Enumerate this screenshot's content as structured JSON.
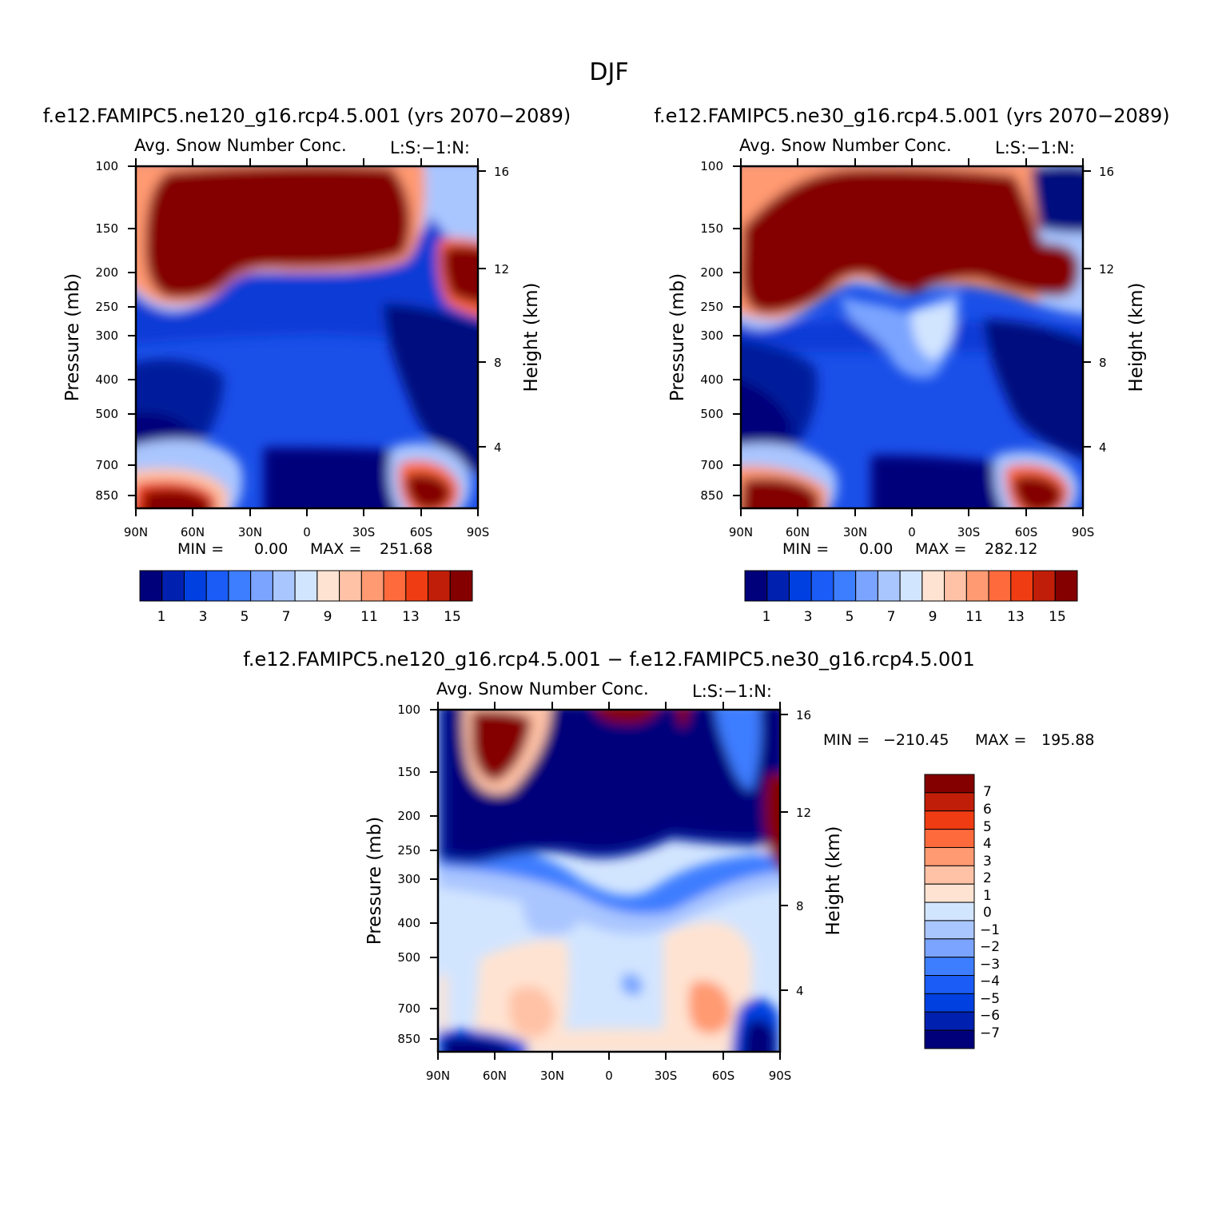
{
  "figure": {
    "title": "DJF"
  },
  "colors": {
    "abs_scale": [
      "#00007a",
      "#0020b0",
      "#0040e0",
      "#1a5cf5",
      "#3d7dff",
      "#7aa4ff",
      "#aac6ff",
      "#d2e5ff",
      "#ffe3d2",
      "#ffc2a6",
      "#ff9a72",
      "#ff6a3d",
      "#f03c12",
      "#c01e08",
      "#840000"
    ],
    "diff_scale": [
      "#00007a",
      "#0020b0",
      "#0040e0",
      "#1a5cf5",
      "#3d7dff",
      "#7aa4ff",
      "#aac6ff",
      "#d2e5ff",
      "#ffe3d2",
      "#ffc2a6",
      "#ff9a72",
      "#ff6a3d",
      "#f03c12",
      "#c01e08",
      "#840000"
    ]
  },
  "chart_data": [
    {
      "type": "heatmap",
      "title": "f.e12.FAMIPC5.ne120_g16.rcp4.5.001 (yrs 2070−2089)",
      "variable": "Avg. Snow Number Conc.",
      "annotation": "L:S:−1:N:",
      "ylabel": "Pressure (mb)",
      "ylabel_right": "Height (km)",
      "yscale": "log",
      "ylim": [
        850,
        100
      ],
      "x_ticks": [
        "90N",
        "60N",
        "30N",
        "0",
        "30S",
        "60S",
        "90S"
      ],
      "y_ticks": [
        "100",
        "150",
        "200",
        "250",
        "300",
        "400",
        "500",
        "700",
        "850"
      ],
      "y2_ticks": [
        "16",
        "12",
        "8",
        "4"
      ],
      "min_label": "MIN =",
      "min_value": "0.00",
      "max_label": "MAX =",
      "max_value": "251.68",
      "colorbar_labels": [
        "1",
        "3",
        "5",
        "7",
        "9",
        "11",
        "13",
        "15"
      ]
    },
    {
      "type": "heatmap",
      "title": "f.e12.FAMIPC5.ne30_g16.rcp4.5.001 (yrs 2070−2089)",
      "variable": "Avg. Snow Number Conc.",
      "annotation": "L:S:−1:N:",
      "ylabel": "Pressure (mb)",
      "ylabel_right": "Height (km)",
      "yscale": "log",
      "ylim": [
        850,
        100
      ],
      "x_ticks": [
        "90N",
        "60N",
        "30N",
        "0",
        "30S",
        "60S",
        "90S"
      ],
      "y_ticks": [
        "100",
        "150",
        "200",
        "250",
        "300",
        "400",
        "500",
        "700",
        "850"
      ],
      "y2_ticks": [
        "16",
        "12",
        "8",
        "4"
      ],
      "min_label": "MIN =",
      "min_value": "0.00",
      "max_label": "MAX =",
      "max_value": "282.12",
      "colorbar_labels": [
        "1",
        "3",
        "5",
        "7",
        "9",
        "11",
        "13",
        "15"
      ]
    },
    {
      "type": "heatmap",
      "title": "f.e12.FAMIPC5.ne120_g16.rcp4.5.001 − f.e12.FAMIPC5.ne30_g16.rcp4.5.001",
      "variable": "Avg. Snow Number Conc.",
      "annotation": "L:S:−1:N:",
      "ylabel": "Pressure (mb)",
      "ylabel_right": "Height (km)",
      "yscale": "log",
      "ylim": [
        850,
        100
      ],
      "x_ticks": [
        "90N",
        "60N",
        "30N",
        "0",
        "30S",
        "60S",
        "90S"
      ],
      "y_ticks": [
        "100",
        "150",
        "200",
        "250",
        "300",
        "400",
        "500",
        "700",
        "850"
      ],
      "y2_ticks": [
        "16",
        "12",
        "8",
        "4"
      ],
      "min_label": "MIN =",
      "min_value": "−210.45",
      "max_label": "MAX =",
      "max_value": "195.88",
      "colorbar_labels": [
        "7",
        "6",
        "5",
        "4",
        "3",
        "2",
        "1",
        "0",
        "−1",
        "−2",
        "−3",
        "−4",
        "−5",
        "−6",
        "−7"
      ]
    }
  ]
}
